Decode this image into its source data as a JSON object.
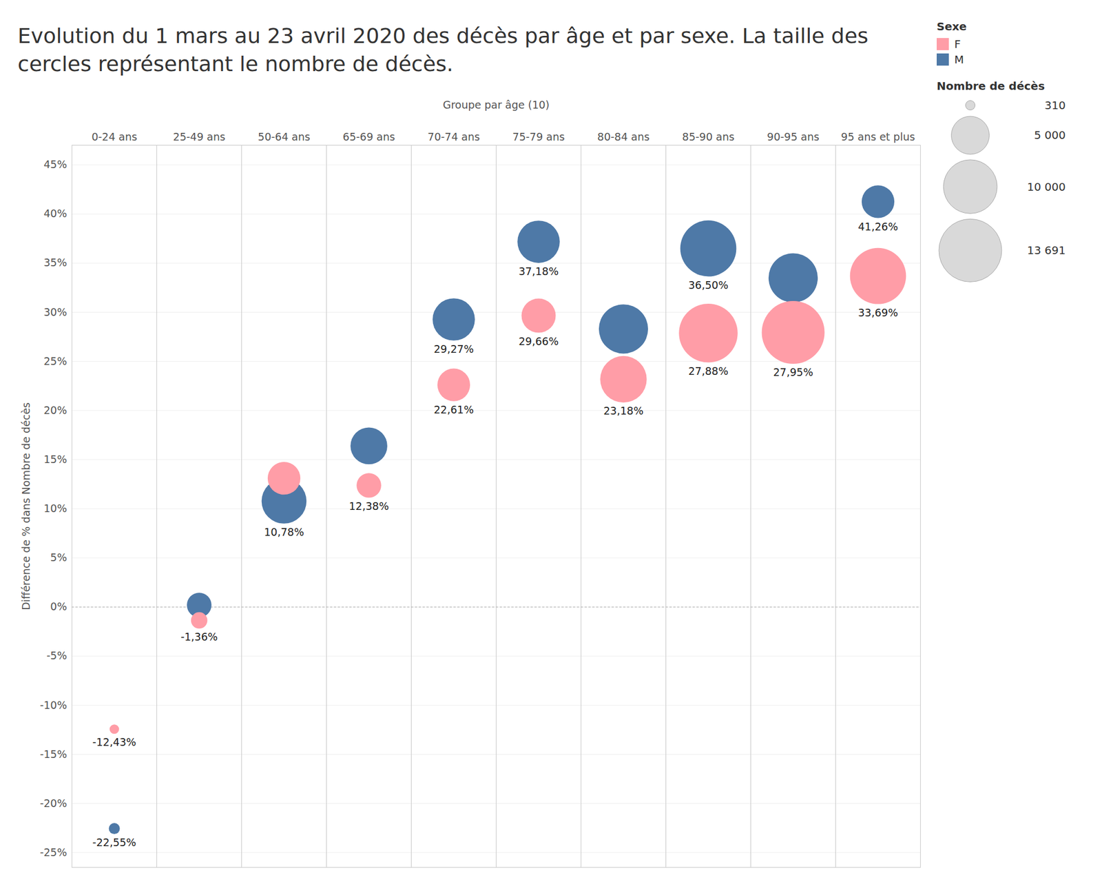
{
  "chart_data": {
    "type": "scatter",
    "title": "Evolution du 1 mars au 23 avril 2020 des décès par âge et par sexe. La taille des cercles représentant le nombre de décès.",
    "x_label": "Groupe par âge (10)",
    "y_label": "Différence de % dans Nombre de décès",
    "categories": [
      "0-24 ans",
      "25-49 ans",
      "50-64 ans",
      "65-69 ans",
      "70-74 ans",
      "75-79 ans",
      "80-84 ans",
      "85-90 ans",
      "90-95 ans",
      "95 ans et plus"
    ],
    "series": [
      {
        "name": "M",
        "color": "#4e79a7",
        "values": [
          -22.55,
          0.2,
          10.78,
          16.4,
          29.27,
          37.18,
          28.3,
          36.5,
          33.5,
          41.26
        ],
        "sizes": [
          420,
          2100,
          7000,
          4700,
          6200,
          6200,
          8400,
          10900,
          8400,
          3700
        ],
        "value_labels": [
          "-22,55%",
          null,
          "10,78%",
          null,
          "29,27%",
          "37,18%",
          null,
          "36,50%",
          null,
          "41,26%"
        ]
      },
      {
        "name": "F",
        "color": "#ff9da7",
        "values": [
          -12.43,
          -1.36,
          13.1,
          12.38,
          22.61,
          29.66,
          23.18,
          27.88,
          27.95,
          33.69
        ],
        "sizes": [
          310,
          930,
          3700,
          2100,
          3700,
          4050,
          7500,
          11950,
          13691,
          10900
        ],
        "value_labels": [
          "-12,43%",
          "-1,36%",
          null,
          "12,38%",
          "22,61%",
          "29,66%",
          "23,18%",
          "27,88%",
          "27,95%",
          "33,69%"
        ]
      }
    ],
    "ylim": [
      -26.5,
      47
    ],
    "yticks": [
      {
        "value": -25,
        "label": "-25%"
      },
      {
        "value": -20,
        "label": "-20%"
      },
      {
        "value": -15,
        "label": "-15%"
      },
      {
        "value": -10,
        "label": "-10%"
      },
      {
        "value": -5,
        "label": "-5%"
      },
      {
        "value": 0,
        "label": "0%"
      },
      {
        "value": 5,
        "label": "5%"
      },
      {
        "value": 10,
        "label": "10%"
      },
      {
        "value": 15,
        "label": "15%"
      },
      {
        "value": 20,
        "label": "20%"
      },
      {
        "value": 25,
        "label": "25%"
      },
      {
        "value": 30,
        "label": "30%"
      },
      {
        "value": 35,
        "label": "35%"
      },
      {
        "value": 40,
        "label": "40%"
      },
      {
        "value": 45,
        "label": "45%"
      }
    ],
    "grid": true,
    "data_labels": true,
    "legend": "top-right",
    "legend_title": "Sexe",
    "legend_order": [
      "F",
      "M"
    ],
    "size_legend": {
      "title": "Nombre de décès",
      "values": [
        310,
        {
          "value": 5000,
          "label": "5 000"
        },
        {
          "value": 10000,
          "label": "10 000"
        },
        {
          "value": 13691,
          "label": "13 691"
        }
      ]
    }
  }
}
